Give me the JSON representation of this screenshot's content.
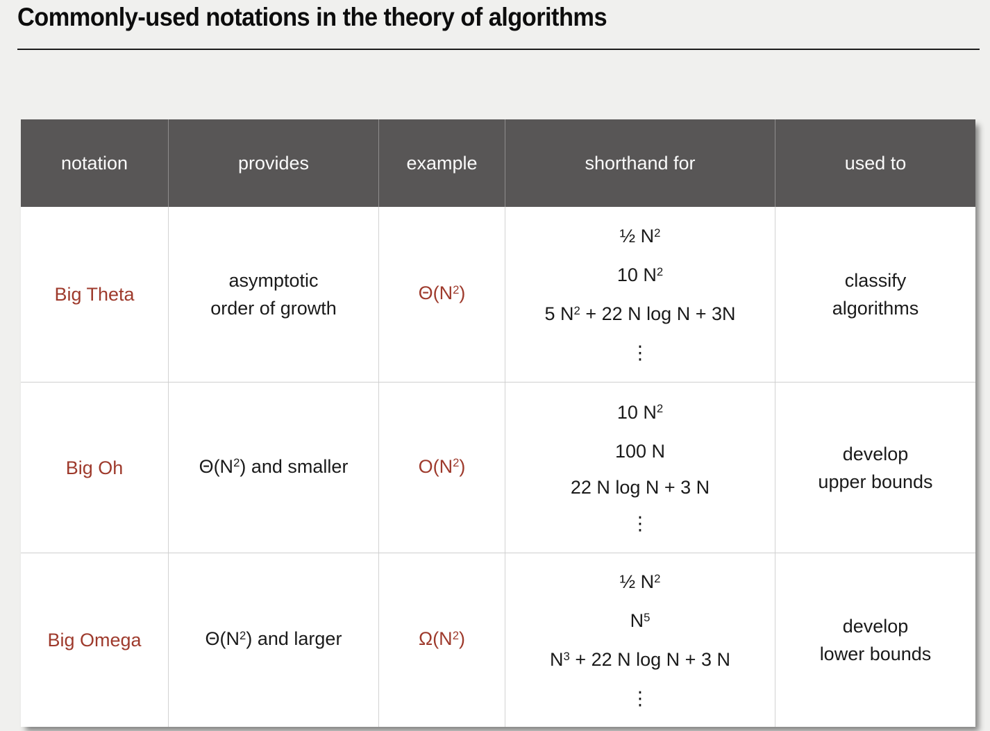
{
  "slide": {
    "title": "Commonly-used notations in the theory of algorithms"
  },
  "table": {
    "headers": [
      "notation",
      "provides",
      "example",
      "shorthand for",
      "used to"
    ],
    "rows": [
      {
        "notation": "Big Theta",
        "provides": [
          [
            "asymptotic"
          ],
          [
            "order of growth"
          ]
        ],
        "example": [
          [
            "Θ(N",
            {
              "sup": "2"
            },
            ")"
          ]
        ],
        "shorthand": [
          [
            "½ N",
            {
              "sup": "2"
            }
          ],
          [
            "10 N",
            {
              "sup": "2"
            }
          ],
          [
            "5 N",
            {
              "sup": "2"
            },
            " + 22 N log N + 3N"
          ],
          [
            "⋮"
          ]
        ],
        "used_to": [
          [
            "classify"
          ],
          [
            "algorithms"
          ]
        ]
      },
      {
        "notation": "Big Oh",
        "provides": [
          [
            "Θ(N",
            {
              "sup": "2"
            },
            ") and smaller"
          ]
        ],
        "example": [
          [
            "O(N",
            {
              "sup": "2"
            },
            ")"
          ]
        ],
        "shorthand": [
          [
            "10 N",
            {
              "sup": "2"
            }
          ],
          [
            "100 N"
          ],
          [
            "22 N log N + 3 N"
          ],
          [
            "⋮"
          ]
        ],
        "used_to": [
          [
            "develop"
          ],
          [
            "upper bounds"
          ]
        ]
      },
      {
        "notation": "Big Omega",
        "provides": [
          [
            "Θ(N",
            {
              "sup": "2"
            },
            ") and larger"
          ]
        ],
        "example": [
          [
            "Ω(N",
            {
              "sup": "2"
            },
            ")"
          ]
        ],
        "shorthand": [
          [
            "½ N",
            {
              "sup": "2"
            }
          ],
          [
            "N",
            {
              "sup": "5"
            }
          ],
          [
            "N",
            {
              "sup": "3"
            },
            " + 22 N log N + 3 N"
          ],
          [
            "⋮"
          ]
        ],
        "used_to": [
          [
            "develop"
          ],
          [
            "lower bounds"
          ]
        ]
      }
    ]
  },
  "colors": {
    "accent_red": "#9e3a2c",
    "header_bg": "#585656",
    "page_bg": "#f0f0ee"
  }
}
